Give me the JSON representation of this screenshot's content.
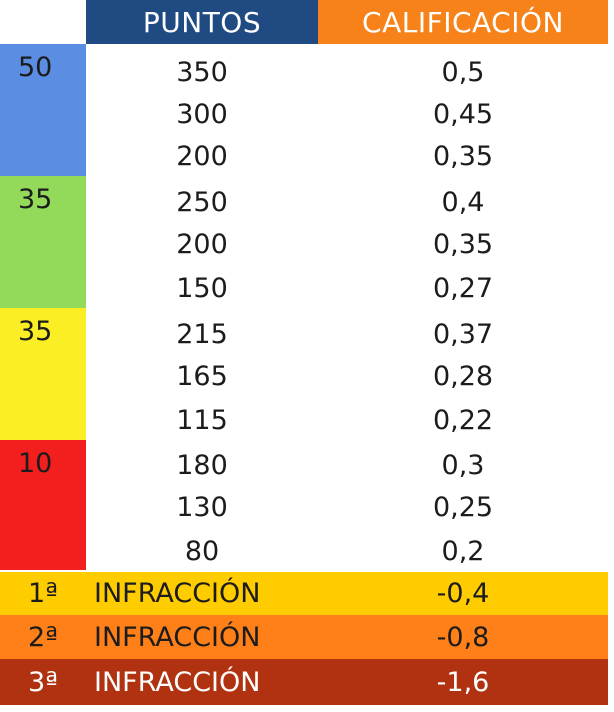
{
  "header": {
    "col_puntos": "PUNTOS",
    "col_calificacion": "CALIFICACIÓN"
  },
  "groups": [
    {
      "weight": "50",
      "colors": {
        "weight_bg": "#5b8ee3",
        "puntos_bg": "#94bdf3",
        "calif_bg": "#d8ecfd"
      },
      "rows": [
        {
          "puntos": "350",
          "calificacion": "0,5"
        },
        {
          "puntos": "300",
          "calificacion": "0,45"
        },
        {
          "puntos": "200",
          "calificacion": "0,35"
        }
      ]
    },
    {
      "weight": "35",
      "colors": {
        "weight_bg": "#93d95a",
        "puntos_bg": "#d7e8b3",
        "calif_bg": "#eef8d9"
      },
      "rows": [
        {
          "puntos": "250",
          "calificacion": "0,4"
        },
        {
          "puntos": "200",
          "calificacion": "0,35"
        },
        {
          "puntos": "150",
          "calificacion": "0,27"
        }
      ]
    },
    {
      "weight": "35",
      "colors": {
        "weight_bg": "#fbee24",
        "puntos_bg": "#f7ff8c",
        "calif_bg": "#fdfcdf"
      },
      "rows": [
        {
          "puntos": "215",
          "calificacion": "0,37"
        },
        {
          "puntos": "165",
          "calificacion": "0,28"
        },
        {
          "puntos": "115",
          "calificacion": "0,22"
        }
      ]
    },
    {
      "weight": "10",
      "colors": {
        "weight_bg": "#f31f1f",
        "puntos_bg": "#f94f4f",
        "calif_bg": "#f9a06f"
      },
      "rows": [
        {
          "puntos": "180",
          "calificacion": "0,3"
        },
        {
          "puntos": "130",
          "calificacion": "0,25"
        },
        {
          "puntos": "80",
          "calificacion": "0,2"
        }
      ]
    }
  ],
  "infracciones": [
    {
      "ordinal": "1ª",
      "label": "INFRACCIÓN",
      "value": "-0,4",
      "bg": "#ffcc00"
    },
    {
      "ordinal": "2ª",
      "label": "INFRACCIÓN",
      "value": "-0,8",
      "bg": "#ff7f19"
    },
    {
      "ordinal": "3ª",
      "label": "INFRACCIÓN",
      "value": "-1,6",
      "bg": "#b03210"
    }
  ],
  "colors": {
    "header_puntos_bg": "#1f4b82",
    "header_calif_bg": "#f7821a",
    "header_text": "#ffffff"
  }
}
